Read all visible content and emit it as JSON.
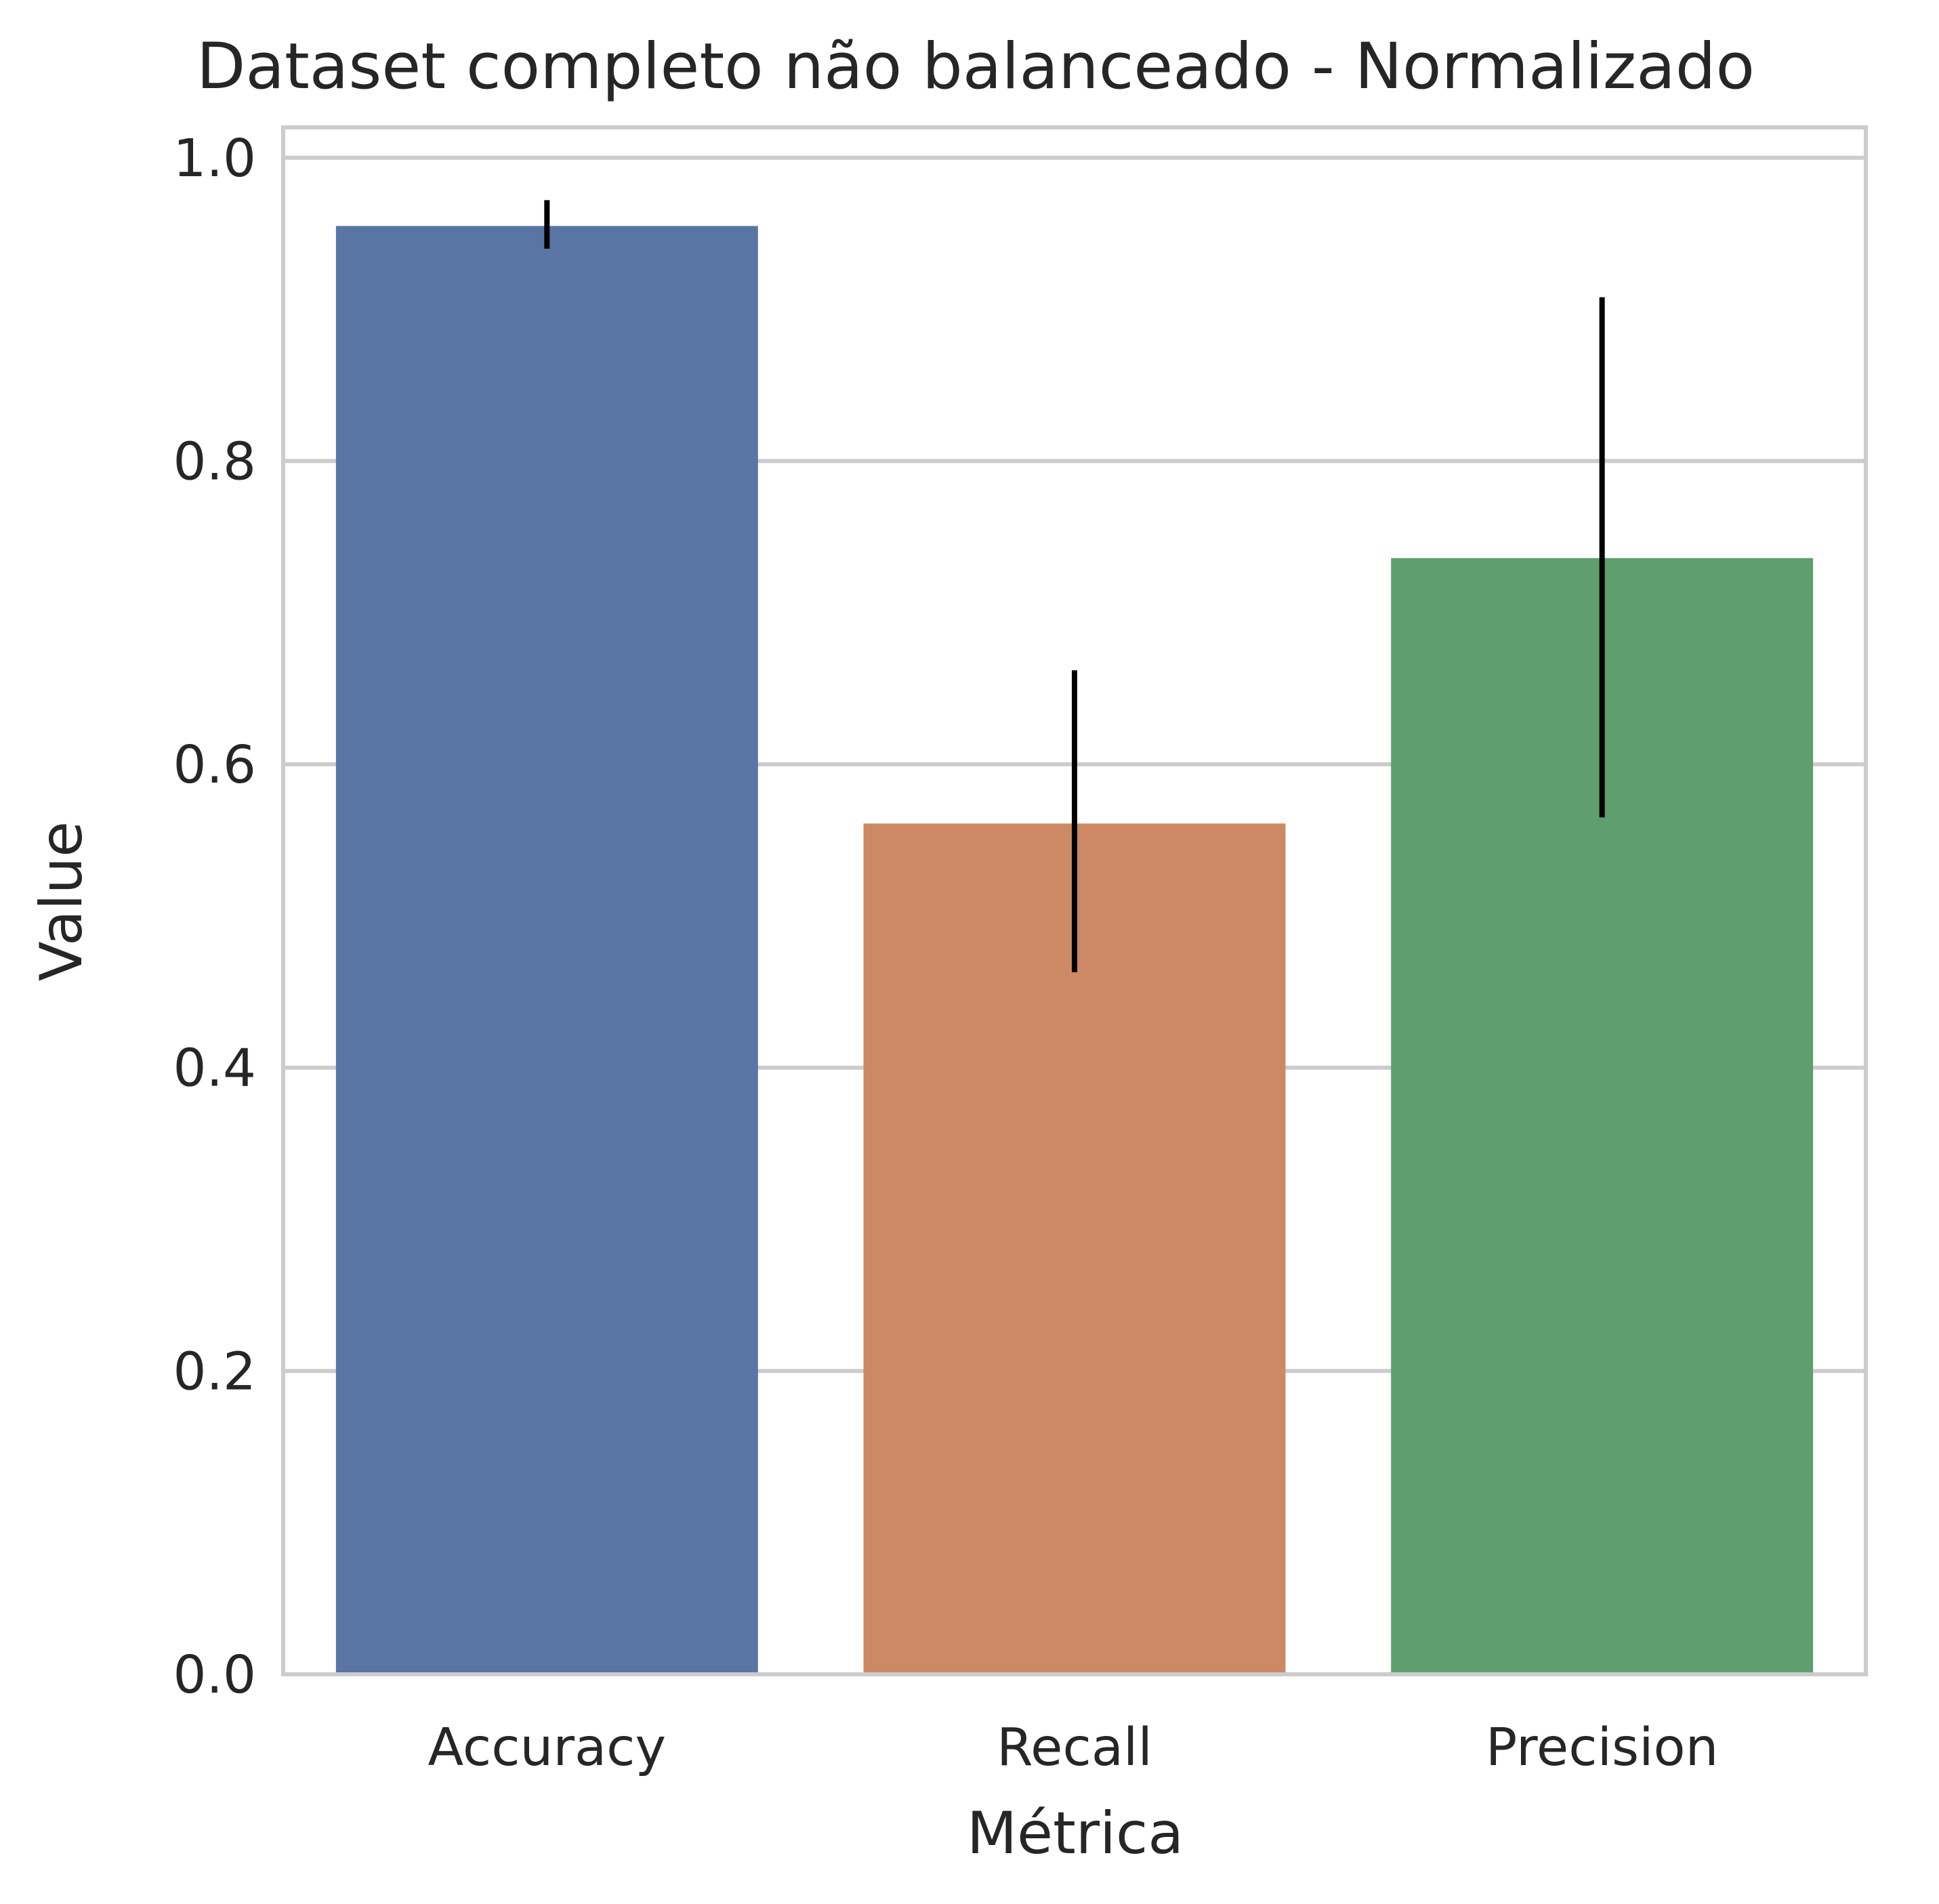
{
  "chart_data": {
    "type": "bar",
    "title": "Dataset completo não balanceado - Normalizado",
    "xlabel": "Métrica",
    "ylabel": "Value",
    "categories": [
      "Accuracy",
      "Recall",
      "Precision"
    ],
    "values": [
      0.955,
      0.561,
      0.736
    ],
    "error_low": [
      0.94,
      0.463,
      0.565
    ],
    "error_high": [
      0.972,
      0.662,
      0.908
    ],
    "colors": [
      "#5975a4",
      "#cc8963",
      "#5f9e6e"
    ],
    "ylim": [
      0,
      1.02
    ],
    "yticks": [
      0.0,
      0.2,
      0.4,
      0.6,
      0.8,
      1.0
    ],
    "ytick_labels": [
      "0.0",
      "0.2",
      "0.4",
      "0.6",
      "0.8",
      "1.0"
    ],
    "grid": true
  }
}
